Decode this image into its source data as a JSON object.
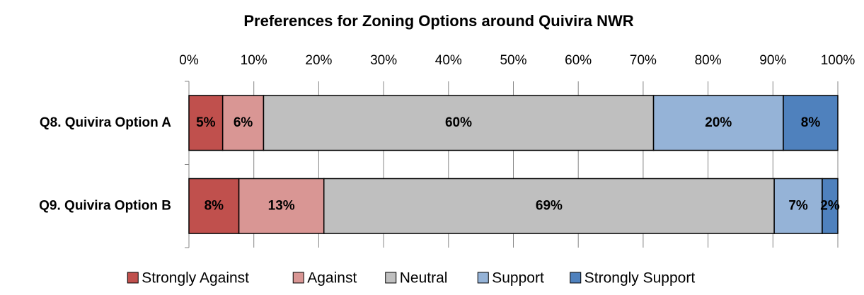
{
  "chart_data": {
    "type": "stacked_bar_horizontal",
    "title": "Preferences for Zoning Options around Quivira NWR",
    "categories": [
      "Q8. Quivira Option A",
      "Q9. Quivira Option B"
    ],
    "series": [
      {
        "name": "Strongly Against",
        "color": "#c0504d",
        "values": [
          5.2,
          7.7
        ],
        "value_labels": [
          "5%",
          "8%"
        ]
      },
      {
        "name": "Against",
        "color": "#d99694",
        "values": [
          6.3,
          13.1
        ],
        "value_labels": [
          "6%",
          "13%"
        ]
      },
      {
        "name": "Neutral",
        "color": "#bfbfbf",
        "values": [
          60.1,
          69.4
        ],
        "value_labels": [
          "60%",
          "69%"
        ]
      },
      {
        "name": "Support",
        "color": "#95b3d7",
        "values": [
          20.0,
          7.4
        ],
        "value_labels": [
          "20%",
          "7%"
        ]
      },
      {
        "name": "Strongly Support",
        "color": "#4f81bd",
        "values": [
          8.4,
          2.4
        ],
        "value_labels": [
          "8%",
          "2%"
        ]
      }
    ],
    "xlim": [
      0,
      100
    ],
    "xticks": [
      {
        "value": 0,
        "label": "0%"
      },
      {
        "value": 10,
        "label": "10%"
      },
      {
        "value": 20,
        "label": "20%"
      },
      {
        "value": 30,
        "label": "30%"
      },
      {
        "value": 40,
        "label": "40%"
      },
      {
        "value": 50,
        "label": "50%"
      },
      {
        "value": 60,
        "label": "60%"
      },
      {
        "value": 70,
        "label": "70%"
      },
      {
        "value": 80,
        "label": "80%"
      },
      {
        "value": 90,
        "label": "90%"
      },
      {
        "value": 100,
        "label": "100%"
      }
    ],
    "grid": true,
    "legend": "bottom"
  }
}
